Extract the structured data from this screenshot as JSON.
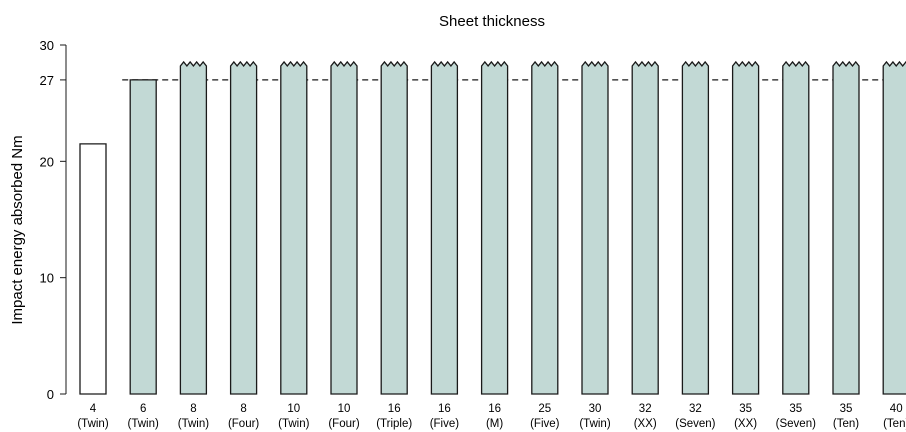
{
  "chart_data": {
    "type": "bar",
    "title": "Sheet thickness",
    "xlabel": "",
    "ylabel": "Impact energy absorbed Nm",
    "ylim": [
      0,
      30
    ],
    "yticks": [
      {
        "value": 0,
        "label": "0"
      },
      {
        "value": 10,
        "label": "10"
      },
      {
        "value": 20,
        "label": "20"
      },
      {
        "value": 27,
        "label": "27"
      },
      {
        "value": 30,
        "label": "30"
      }
    ],
    "reference_line": {
      "value": 27,
      "style": "dashed"
    },
    "categories": [
      {
        "thickness": "4",
        "type": "(Twin)"
      },
      {
        "thickness": "6",
        "type": "(Twin)"
      },
      {
        "thickness": "8",
        "type": "(Twin)"
      },
      {
        "thickness": "8",
        "type": "(Four)"
      },
      {
        "thickness": "10",
        "type": "(Twin)"
      },
      {
        "thickness": "10",
        "type": "(Four)"
      },
      {
        "thickness": "16",
        "type": "(Triple)"
      },
      {
        "thickness": "16",
        "type": "(Five)"
      },
      {
        "thickness": "16",
        "type": "(M)"
      },
      {
        "thickness": "25",
        "type": "(Five)"
      },
      {
        "thickness": "30",
        "type": "(Twin)"
      },
      {
        "thickness": "32",
        "type": "(XX)"
      },
      {
        "thickness": "32",
        "type": "(Seven)"
      },
      {
        "thickness": "35",
        "type": "(XX)"
      },
      {
        "thickness": "35",
        "type": "(Seven)"
      },
      {
        "thickness": "35",
        "type": "(Ten)"
      },
      {
        "thickness": "40",
        "type": "(Ten)"
      }
    ],
    "values": [
      21.5,
      27,
      28.2,
      28.2,
      28.2,
      28.2,
      28.2,
      28.2,
      28.2,
      28.2,
      28.2,
      28.2,
      28.2,
      28.2,
      28.2,
      28.2,
      28.2
    ],
    "truncated": [
      false,
      false,
      true,
      true,
      true,
      true,
      true,
      true,
      true,
      true,
      true,
      true,
      true,
      true,
      true,
      true,
      true
    ],
    "colors": {
      "bar_fill": "#c2d9d5",
      "first_bar_fill": "#ffffff",
      "stroke": "#1a1a1a"
    },
    "grid": false,
    "legend": "none"
  }
}
